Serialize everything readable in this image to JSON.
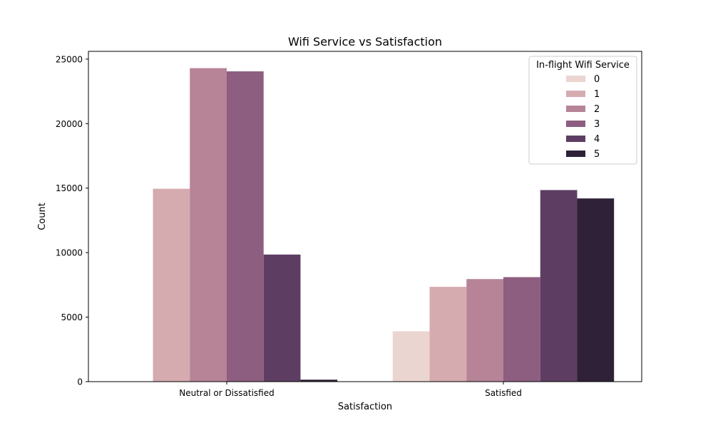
{
  "chart_data": {
    "type": "bar",
    "title": "Wifi Service vs Satisfaction",
    "xlabel": "Satisfaction",
    "ylabel": "Count",
    "categories": [
      "Neutral or Dissatisfied",
      "Satisfied"
    ],
    "ylim": [
      0,
      25600
    ],
    "yticks": [
      0,
      5000,
      10000,
      15000,
      20000,
      25000
    ],
    "grid": false,
    "legend": {
      "title": "In-flight Wifi Service",
      "placement": "top-right"
    },
    "series": [
      {
        "name": "0",
        "color": "#ebd5d0",
        "values": [
          0,
          3900
        ]
      },
      {
        "name": "1",
        "color": "#d5abb0",
        "values": [
          14950,
          7350
        ]
      },
      {
        "name": "2",
        "color": "#b78397",
        "values": [
          24300,
          7950
        ]
      },
      {
        "name": "3",
        "color": "#8d5e80",
        "values": [
          24050,
          8100
        ]
      },
      {
        "name": "4",
        "color": "#5d3e62",
        "values": [
          9850,
          14850
        ]
      },
      {
        "name": "5",
        "color": "#2e2138",
        "values": [
          150,
          14200
        ]
      }
    ]
  }
}
